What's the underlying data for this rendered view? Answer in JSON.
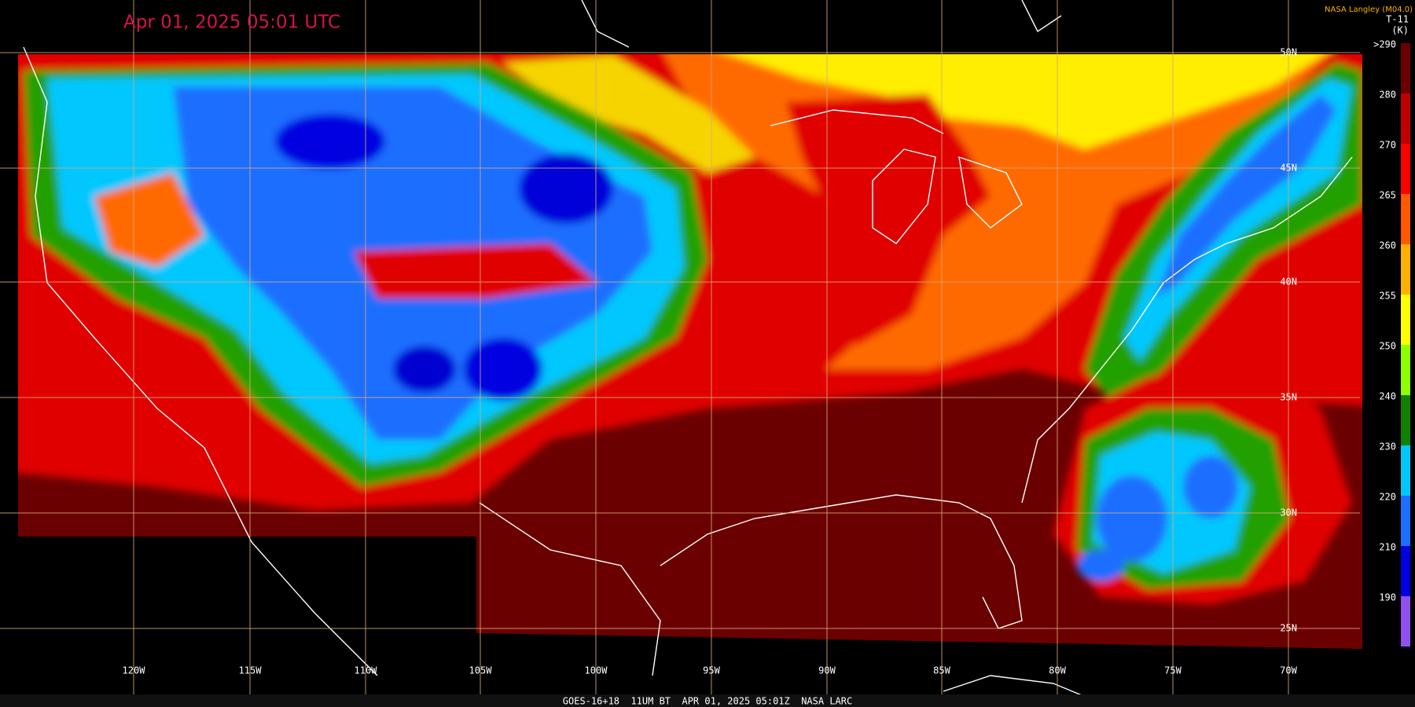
{
  "title": "Apr 01, 2025 05:01 UTC",
  "credit": "NASA Langley (M04.0)",
  "legend": {
    "title": "T-11",
    "unit": "(K)",
    "labels": [
      ">290",
      "280",
      "270",
      "265",
      "260",
      "255",
      "250",
      "240",
      "230",
      "220",
      "210",
      "190"
    ]
  },
  "longitude_labels": [
    "120W",
    "115W",
    "110W",
    "105W",
    "100W",
    "95W",
    "90W",
    "85W",
    "80W",
    "75W",
    "70W"
  ],
  "latitude_labels": [
    "50N",
    "45N",
    "40N",
    "35N",
    "30N",
    "25N"
  ],
  "footer": "GOES-16+18  11UM BT  APR 01, 2025 05:01Z  NASA LARC"
}
